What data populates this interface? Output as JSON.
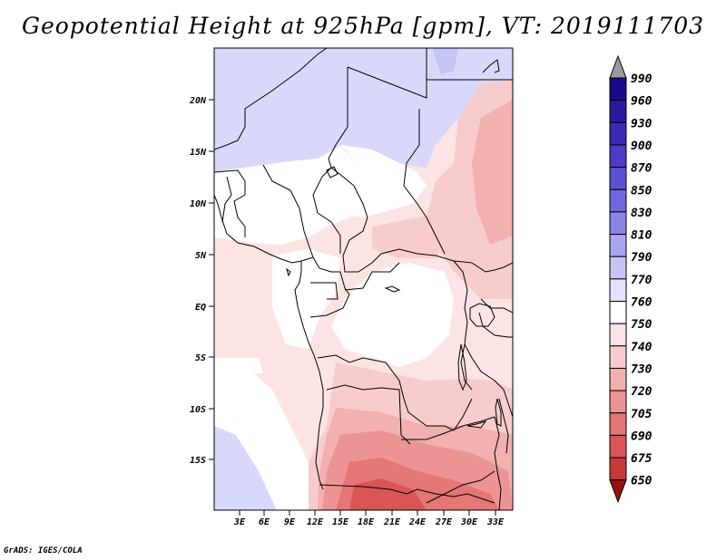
{
  "title": "Geopotential Height at 925hPa [gpm], VT: 2019111703",
  "footer": "GrADS: IGES/COLA",
  "map": {
    "lat_ticks": [
      "20N",
      "15N",
      "10N",
      "5N",
      "EQ",
      "5S",
      "10S",
      "15S"
    ],
    "lon_ticks": [
      "3E",
      "6E",
      "9E",
      "12E",
      "15E",
      "18E",
      "21E",
      "24E",
      "27E",
      "30E",
      "33E"
    ]
  },
  "colorbar": {
    "levels": [
      "990",
      "960",
      "930",
      "900",
      "870",
      "850",
      "830",
      "810",
      "790",
      "770",
      "760",
      "750",
      "740",
      "730",
      "720",
      "705",
      "690",
      "675",
      "650"
    ],
    "colors": [
      "#1a0a8a",
      "#2a1aa0",
      "#3a2ab4",
      "#4a3cc6",
      "#5a52d2",
      "#6e68dc",
      "#8a86e6",
      "#a8a6ee",
      "#c6c6f6",
      "#e2e2fc",
      "#ffffff",
      "#fde4e4",
      "#f8cccc",
      "#f2b0b0",
      "#ec9494",
      "#e47676",
      "#d85656",
      "#c83a3a",
      "#b01e1e"
    ],
    "top_arrow_color": "#9a9a9a",
    "bottom_arrow_color": "#9a1010"
  },
  "field_colors": {
    "lightblue": "#d8d8fa",
    "blue": "#c4c4f6",
    "white": "#ffffff",
    "pink1": "#fde4e4",
    "pink2": "#f8cccc",
    "pink3": "#f2b0b0",
    "pink4": "#ec9494",
    "red1": "#e47676",
    "red2": "#d85656"
  }
}
